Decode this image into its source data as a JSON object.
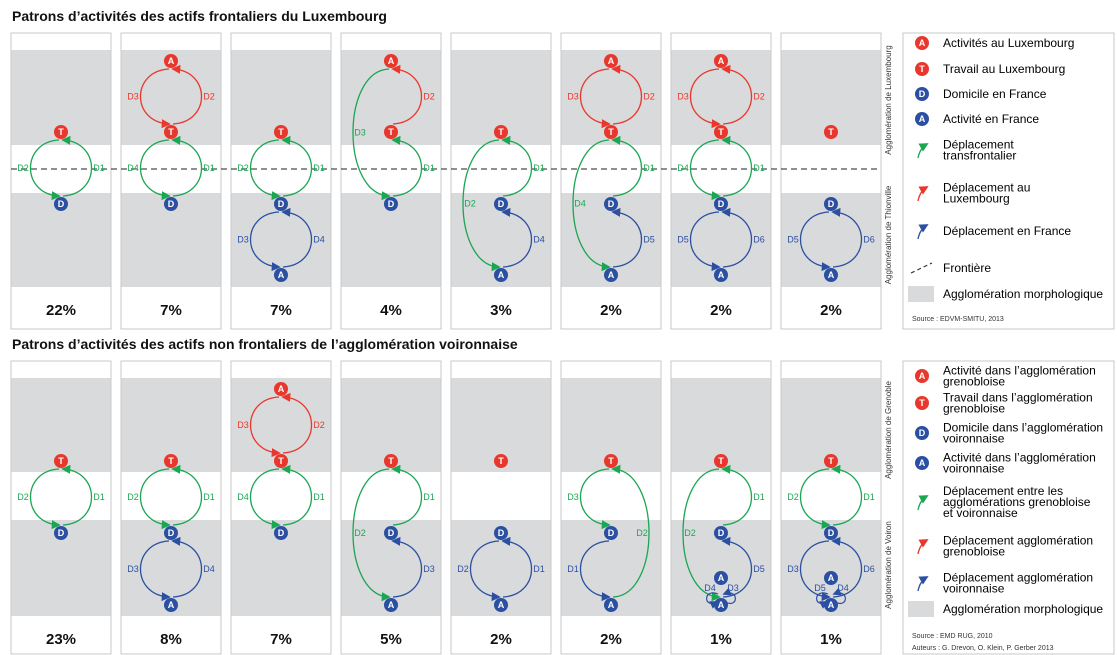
{
  "colors": {
    "green": "#1aa653",
    "red": "#e8372c",
    "blue": "#2b4fa1",
    "grey": "#d9dadb",
    "border": "#bdbdbd"
  },
  "sections": [
    {
      "title": "Patrons d’activités des actifs frontaliers du Luxembourg",
      "side_labels": [
        "Agglomération de Luxembourg",
        "Agglomération de Thionville"
      ],
      "legend": [
        {
          "icon": "A",
          "color": "red",
          "label": [
            "Activités au Luxembourg"
          ]
        },
        {
          "icon": "T",
          "color": "red",
          "label": [
            "Travail au Luxembourg"
          ]
        },
        {
          "icon": "D",
          "color": "blue",
          "label": [
            "Domicile en France"
          ]
        },
        {
          "icon": "A",
          "color": "blue",
          "label": [
            "Activité en France"
          ]
        },
        {
          "icon": "arrow",
          "color": "green",
          "label": [
            "Déplacement",
            "transfrontalier"
          ]
        },
        {
          "icon": "arrow",
          "color": "red",
          "label": [
            "Déplacement au",
            "Luxembourg"
          ]
        },
        {
          "icon": "arrow",
          "color": "blue",
          "label": [
            "Déplacement en France"
          ]
        },
        {
          "icon": "dash",
          "color": "dark",
          "label": [
            "Frontière"
          ]
        },
        {
          "icon": "box",
          "color": "grey",
          "label": [
            "Agglomération morphologique"
          ]
        }
      ],
      "source": [
        "Source : EDVM-SMITU, 2013"
      ],
      "panels": [
        {
          "pct": "22%",
          "nodes": [
            [
              "T",
              "red",
              "m"
            ],
            [
              "D",
              "blue",
              "l"
            ]
          ],
          "edges": [
            [
              "g",
              "m",
              "l",
              "D2",
              "D1"
            ]
          ]
        },
        {
          "pct": "7%",
          "nodes": [
            [
              "A",
              "red",
              "t"
            ],
            [
              "T",
              "red",
              "m"
            ],
            [
              "D",
              "blue",
              "l"
            ]
          ],
          "edges": [
            [
              "r",
              "t",
              "m",
              "D3",
              "D2"
            ],
            [
              "g",
              "m",
              "l",
              "D4",
              "D1"
            ]
          ]
        },
        {
          "pct": "7%",
          "nodes": [
            [
              "T",
              "red",
              "m"
            ],
            [
              "D",
              "blue",
              "l"
            ],
            [
              "A",
              "blue",
              "b"
            ]
          ],
          "edges": [
            [
              "g",
              "m",
              "l",
              "D2",
              "D1"
            ],
            [
              "b",
              "l",
              "b",
              "D3",
              "D4"
            ]
          ]
        },
        {
          "pct": "4%",
          "nodes": [
            [
              "A",
              "red",
              "t"
            ],
            [
              "T",
              "red",
              "m"
            ],
            [
              "D",
              "blue",
              "l"
            ]
          ],
          "edges": [
            [
              "rhalf",
              "t",
              "m",
              "",
              "D2"
            ],
            [
              "ghalf",
              "m",
              "l",
              "",
              "D1"
            ],
            [
              "gbigL",
              "t",
              "l",
              "D3",
              ""
            ]
          ]
        },
        {
          "pct": "3%",
          "nodes": [
            [
              "T",
              "red",
              "m"
            ],
            [
              "D",
              "blue",
              "l"
            ],
            [
              "A",
              "blue",
              "b"
            ]
          ],
          "edges": [
            [
              "ghalf",
              "m",
              "l",
              "",
              "D1"
            ],
            [
              "bhalf",
              "l",
              "b",
              "",
              "D4"
            ],
            [
              "gbigL",
              "m",
              "b",
              "D2",
              ""
            ]
          ]
        },
        {
          "pct": "2%",
          "nodes": [
            [
              "A",
              "red",
              "t"
            ],
            [
              "T",
              "red",
              "m"
            ],
            [
              "D",
              "blue",
              "l"
            ],
            [
              "A",
              "blue",
              "b"
            ]
          ],
          "edges": [
            [
              "r",
              "t",
              "m",
              "D3",
              "D2"
            ],
            [
              "ghalf",
              "m",
              "l",
              "",
              "D1"
            ],
            [
              "bhalf",
              "l",
              "b",
              "",
              "D5"
            ],
            [
              "gbigL",
              "m",
              "b",
              "D4",
              ""
            ]
          ]
        },
        {
          "pct": "2%",
          "nodes": [
            [
              "A",
              "red",
              "t"
            ],
            [
              "T",
              "red",
              "m"
            ],
            [
              "D",
              "blue",
              "l"
            ],
            [
              "A",
              "blue",
              "b"
            ]
          ],
          "edges": [
            [
              "r",
              "t",
              "m",
              "D3",
              "D2"
            ],
            [
              "g",
              "m",
              "l",
              "D4",
              "D1"
            ],
            [
              "b",
              "l",
              "b",
              "D5",
              "D6"
            ]
          ]
        },
        {
          "pct": "2%",
          "nodes": [
            [
              "T",
              "red",
              "m"
            ],
            [
              "D",
              "blue",
              "l"
            ],
            [
              "A",
              "blue",
              "b"
            ]
          ],
          "edges": [
            [
              "b",
              "l",
              "b",
              "D5",
              "D6"
            ]
          ]
        }
      ]
    },
    {
      "title": "Patrons d’activités des actifs non frontaliers de l’agglomération voironnaise",
      "side_labels": [
        "Agglomération de Grenoble",
        "Agglomération de Voiron"
      ],
      "legend": [
        {
          "icon": "A",
          "color": "red",
          "label": [
            "Activité dans l’agglomération",
            "grenobloise"
          ]
        },
        {
          "icon": "T",
          "color": "red",
          "label": [
            "Travail dans l’agglomération",
            "grenobloise"
          ]
        },
        {
          "icon": "D",
          "color": "blue",
          "label": [
            "Domicile dans l’agglomération",
            "voironnaise"
          ]
        },
        {
          "icon": "A",
          "color": "blue",
          "label": [
            "Activité dans l’agglomération",
            "voironnaise"
          ]
        },
        {
          "icon": "arrow",
          "color": "green",
          "label": [
            "Déplacement entre les",
            "agglomérations grenobloise",
            "et voironnaise"
          ]
        },
        {
          "icon": "arrow",
          "color": "red",
          "label": [
            "Déplacement agglomération",
            "grenobloise"
          ]
        },
        {
          "icon": "arrow",
          "color": "blue",
          "label": [
            "Déplacement agglomération",
            "voironnaise"
          ]
        },
        {
          "icon": "box",
          "color": "grey",
          "label": [
            "Agglomération morphologique"
          ]
        }
      ],
      "source": [
        "Source : EMD RUG, 2010",
        "Auteurs : G. Drevon, O. Klein, P. Gerber 2013"
      ],
      "panels": [
        {
          "pct": "23%",
          "nodes": [
            [
              "T",
              "red",
              "m"
            ],
            [
              "D",
              "blue",
              "l"
            ]
          ],
          "edges": [
            [
              "g",
              "m",
              "l",
              "D2",
              "D1"
            ]
          ]
        },
        {
          "pct": "8%",
          "nodes": [
            [
              "T",
              "red",
              "m"
            ],
            [
              "D",
              "blue",
              "l"
            ],
            [
              "A",
              "blue",
              "b"
            ]
          ],
          "edges": [
            [
              "g",
              "m",
              "l",
              "D2",
              "D1"
            ],
            [
              "b",
              "l",
              "b",
              "D3",
              "D4"
            ]
          ]
        },
        {
          "pct": "7%",
          "nodes": [
            [
              "A",
              "red",
              "t"
            ],
            [
              "T",
              "red",
              "m"
            ],
            [
              "D",
              "blue",
              "l"
            ]
          ],
          "edges": [
            [
              "r",
              "t",
              "m",
              "D3",
              "D2"
            ],
            [
              "g",
              "m",
              "l",
              "D4",
              "D1"
            ]
          ]
        },
        {
          "pct": "5%",
          "nodes": [
            [
              "T",
              "red",
              "m"
            ],
            [
              "D",
              "blue",
              "l"
            ],
            [
              "A",
              "blue",
              "b"
            ]
          ],
          "edges": [
            [
              "ghalf",
              "m",
              "l",
              "",
              "D1"
            ],
            [
              "bhalf",
              "l",
              "b",
              "",
              "D3"
            ],
            [
              "gbigL",
              "m",
              "b",
              "D2",
              ""
            ]
          ]
        },
        {
          "pct": "2%",
          "nodes": [
            [
              "T",
              "red",
              "m"
            ],
            [
              "D",
              "blue",
              "l"
            ],
            [
              "A",
              "blue",
              "b"
            ]
          ],
          "edges": [
            [
              "b",
              "l",
              "b",
              "D2",
              "D1"
            ]
          ]
        },
        {
          "pct": "2%",
          "nodes": [
            [
              "T",
              "red",
              "m"
            ],
            [
              "D",
              "blue",
              "l"
            ],
            [
              "A",
              "blue",
              "b"
            ]
          ],
          "edges": [
            [
              "ghalfL",
              "m",
              "l",
              "D3",
              ""
            ],
            [
              "bhalfL",
              "l",
              "b",
              "D1",
              ""
            ],
            [
              "gbigR",
              "m",
              "b",
              "",
              "D2"
            ]
          ]
        },
        {
          "pct": "1%",
          "nodes": [
            [
              "T",
              "red",
              "m"
            ],
            [
              "D",
              "blue",
              "l"
            ],
            [
              "A",
              "blue",
              "b"
            ],
            [
              "A",
              "blue",
              "x"
            ]
          ],
          "edges": [
            [
              "ghalf",
              "m",
              "l",
              "",
              "D1"
            ],
            [
              "bhalf",
              "l",
              "b",
              "",
              "D5"
            ],
            [
              "gbigL",
              "m",
              "b",
              "D2",
              ""
            ],
            [
              "sm",
              "x",
              "b",
              "D4",
              "D3"
            ]
          ]
        },
        {
          "pct": "1%",
          "nodes": [
            [
              "T",
              "red",
              "m"
            ],
            [
              "D",
              "blue",
              "l"
            ],
            [
              "A",
              "blue",
              "b"
            ],
            [
              "A",
              "blue",
              "x"
            ]
          ],
          "edges": [
            [
              "g",
              "m",
              "l",
              "D2",
              "D1"
            ],
            [
              "b",
              "l",
              "b",
              "D3",
              "D6"
            ],
            [
              "sm",
              "x",
              "b",
              "D5",
              "D4"
            ]
          ]
        }
      ]
    }
  ]
}
